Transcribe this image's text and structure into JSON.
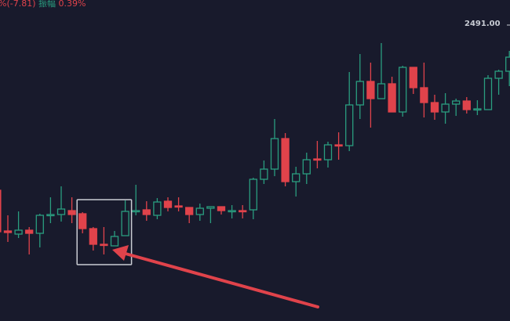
{
  "header": {
    "change": "%(-7.81)",
    "amplitude_label": "振幅",
    "amplitude_value": "0.39%"
  },
  "price_axis_label": "2491.00",
  "colors": {
    "up": "#2a9d7f",
    "down": "#e0434b",
    "background": "#181a2c",
    "highlight_box": "#c9ccd3",
    "arrow": "#e0434b"
  },
  "chart_data": {
    "type": "candlestick",
    "price_marker": 2491.0,
    "highlight_candles": [
      9,
      13
    ],
    "annotation": "arrow pointing to highlighted group",
    "candles": [
      [
        2480.45,
        2480.45,
        2477.8,
        2477.8
      ],
      [
        2477.85,
        2478.85,
        2477.15,
        2477.75
      ],
      [
        2477.65,
        2479.1,
        2477.4,
        2477.9
      ],
      [
        2477.9,
        2478.1,
        2476.35,
        2477.7
      ],
      [
        2477.7,
        2478.95,
        2476.8,
        2478.85
      ],
      [
        2478.85,
        2480.0,
        2478.35,
        2478.9
      ],
      [
        2478.9,
        2480.7,
        2478.45,
        2479.25
      ],
      [
        2479.15,
        2480.0,
        2478.35,
        2478.9
      ],
      [
        2478.95,
        2479.05,
        2477.7,
        2478.0
      ],
      [
        2478.0,
        2478.1,
        2476.6,
        2477.0
      ],
      [
        2477.0,
        2478.1,
        2476.35,
        2476.95
      ],
      [
        2476.9,
        2477.85,
        2476.9,
        2477.5
      ],
      [
        2477.55,
        2479.8,
        2477.55,
        2479.1
      ],
      [
        2479.1,
        2480.8,
        2478.85,
        2479.15
      ],
      [
        2479.2,
        2479.75,
        2478.5,
        2478.9
      ],
      [
        2478.85,
        2479.95,
        2478.6,
        2479.7
      ],
      [
        2479.75,
        2480.0,
        2479.1,
        2479.35
      ],
      [
        2479.45,
        2480.0,
        2479.1,
        2479.4
      ],
      [
        2479.35,
        2479.35,
        2478.35,
        2478.9
      ],
      [
        2478.9,
        2479.6,
        2478.5,
        2479.3
      ],
      [
        2479.3,
        2479.4,
        2478.35,
        2479.4
      ],
      [
        2479.4,
        2479.4,
        2478.9,
        2479.15
      ],
      [
        2479.1,
        2479.5,
        2478.65,
        2479.15
      ],
      [
        2479.15,
        2479.5,
        2478.65,
        2479.1
      ],
      [
        2479.2,
        2481.25,
        2478.6,
        2481.15
      ],
      [
        2481.15,
        2482.35,
        2480.85,
        2481.8
      ],
      [
        2481.8,
        2485.0,
        2481.35,
        2483.75
      ],
      [
        2483.75,
        2484.1,
        2480.7,
        2481.0
      ],
      [
        2481.0,
        2481.95,
        2480.05,
        2481.5
      ],
      [
        2481.5,
        2482.85,
        2480.85,
        2482.4
      ],
      [
        2482.45,
        2483.6,
        2481.85,
        2482.4
      ],
      [
        2482.4,
        2483.55,
        2481.9,
        2483.35
      ],
      [
        2483.35,
        2484.15,
        2482.4,
        2483.3
      ],
      [
        2483.3,
        2488.0,
        2482.95,
        2485.9
      ],
      [
        2485.9,
        2489.15,
        2485.0,
        2487.4
      ],
      [
        2487.4,
        2488.6,
        2484.45,
        2486.3
      ],
      [
        2486.3,
        2489.85,
        2486.3,
        2487.25
      ],
      [
        2487.25,
        2487.7,
        2485.45,
        2485.45
      ],
      [
        2485.45,
        2488.4,
        2485.15,
        2488.3
      ],
      [
        2488.3,
        2488.3,
        2486.6,
        2487.0
      ],
      [
        2487.0,
        2488.6,
        2485.1,
        2486.05
      ],
      [
        2486.05,
        2486.55,
        2484.95,
        2485.45
      ],
      [
        2485.45,
        2486.65,
        2484.7,
        2485.95
      ],
      [
        2485.95,
        2486.3,
        2485.2,
        2486.15
      ],
      [
        2486.15,
        2486.4,
        2485.35,
        2485.6
      ],
      [
        2485.6,
        2486.2,
        2485.25,
        2485.65
      ],
      [
        2485.6,
        2487.8,
        2485.6,
        2487.6
      ],
      [
        2487.6,
        2488.15,
        2486.55,
        2488.05
      ],
      [
        2488.05,
        2489.35,
        2487.1,
        2488.95
      ]
    ]
  }
}
